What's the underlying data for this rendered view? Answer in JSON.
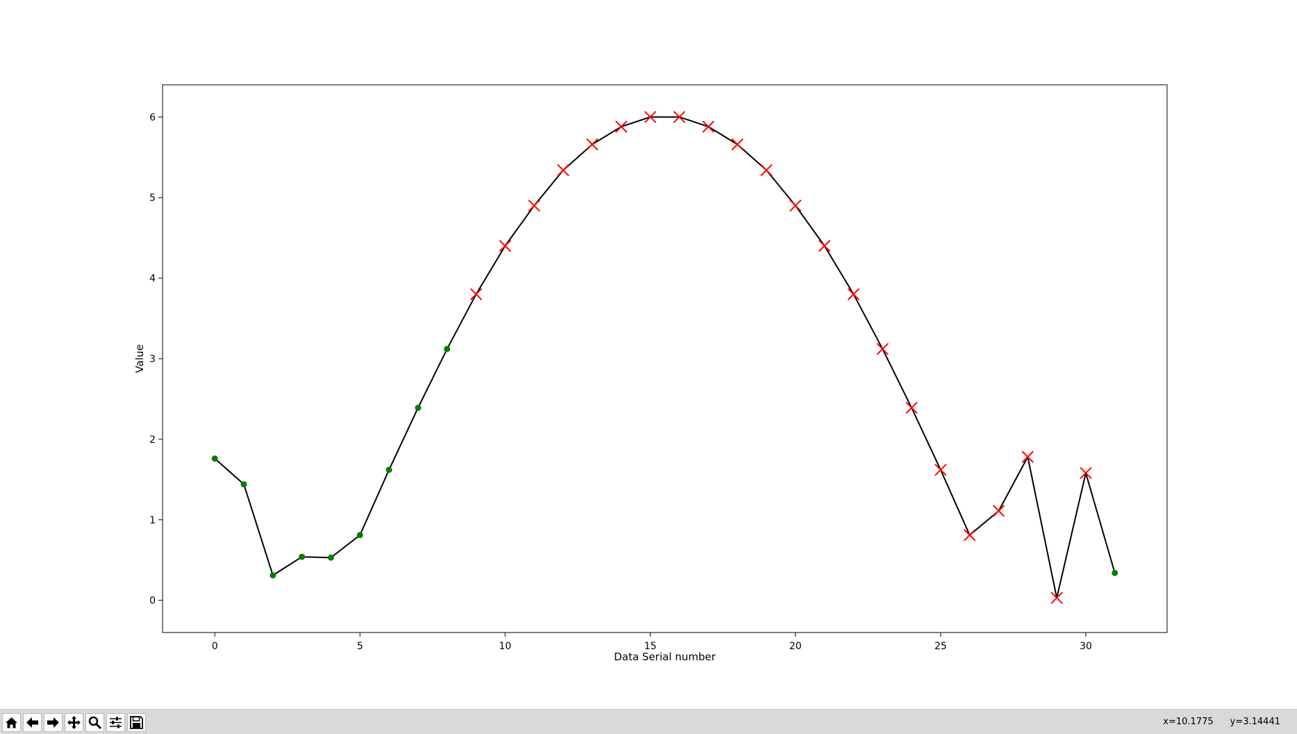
{
  "chart_data": {
    "type": "line",
    "title": "",
    "xlabel": "Data Serial number",
    "ylabel": "Value",
    "xlim": [
      -1.8,
      32.8
    ],
    "ylim": [
      -0.4,
      6.4
    ],
    "xticks": [
      0,
      5,
      10,
      15,
      20,
      25,
      30
    ],
    "yticks": [
      0,
      1,
      2,
      3,
      4,
      5,
      6
    ],
    "grid": false,
    "series": [
      {
        "x": [
          0,
          1,
          2,
          3,
          4,
          5,
          6,
          7,
          8,
          9,
          10,
          11,
          12,
          13,
          14,
          15,
          16,
          17,
          18,
          19,
          20,
          21,
          22,
          23,
          24,
          25,
          26,
          27,
          28,
          29,
          30,
          31
        ],
        "y": [
          1.76,
          1.44,
          0.31,
          0.54,
          0.53,
          0.81,
          1.62,
          2.39,
          3.12,
          3.8,
          4.4,
          4.9,
          5.34,
          5.66,
          5.88,
          6.0,
          6.0,
          5.88,
          5.66,
          5.34,
          4.9,
          4.4,
          3.8,
          3.12,
          2.39,
          1.62,
          0.81,
          1.11,
          1.78,
          0.03,
          1.58,
          0.34
        ],
        "line_color": "#000000",
        "markers": [
          "dot",
          "dot",
          "dot",
          "dot",
          "dot",
          "dot",
          "dot",
          "dot",
          "dot",
          "x",
          "x",
          "x",
          "x",
          "x",
          "x",
          "x",
          "x",
          "x",
          "x",
          "x",
          "x",
          "x",
          "x",
          "x",
          "x",
          "x",
          "x",
          "x",
          "x",
          "x",
          "x",
          "dot"
        ],
        "marker_colors": {
          "dot": "#008000",
          "x": "#ff0000"
        }
      }
    ]
  },
  "toolbar": {
    "buttons": [
      {
        "name": "home-button",
        "icon": "home-icon"
      },
      {
        "name": "back-button",
        "icon": "arrow-left-icon"
      },
      {
        "name": "forward-button",
        "icon": "arrow-right-icon"
      },
      {
        "name": "pan-button",
        "icon": "move-icon"
      },
      {
        "name": "zoom-button",
        "icon": "magnifier-icon"
      },
      {
        "name": "configure-subplots-button",
        "icon": "sliders-icon"
      },
      {
        "name": "save-button",
        "icon": "floppy-disk-icon"
      }
    ],
    "coords": {
      "x": "x=10.1775",
      "y": "y=3.14441"
    }
  }
}
